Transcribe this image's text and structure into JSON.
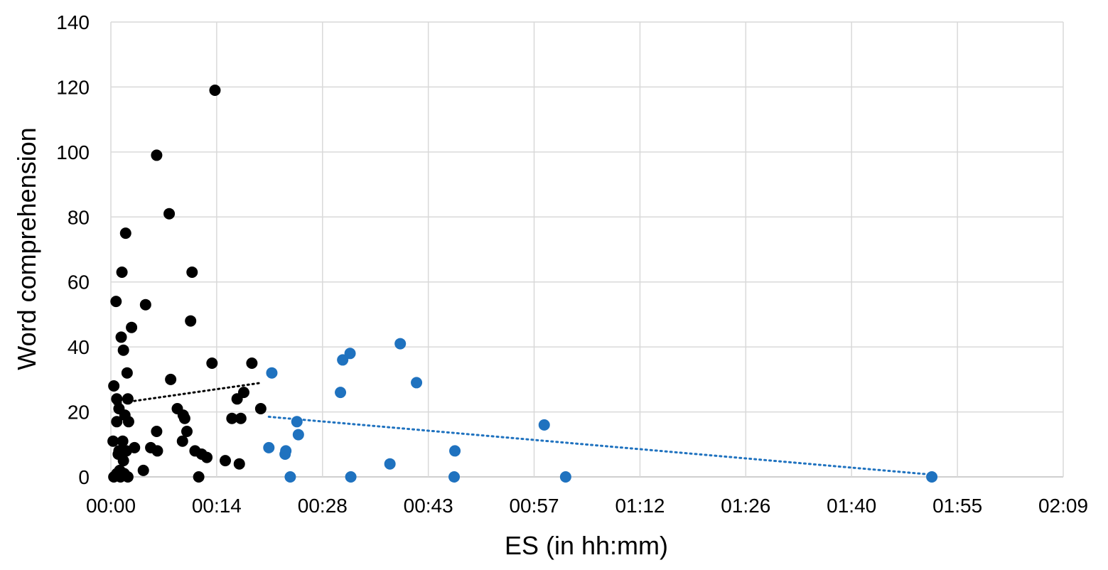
{
  "chart_data": {
    "type": "scatter",
    "title": "",
    "xlabel": "ES (in hh:mm)",
    "ylabel": "Word comprehension",
    "x_unit": "minutes",
    "xlim": [
      0,
      129
    ],
    "ylim": [
      0,
      140
    ],
    "x_ticks": [
      {
        "value": 0,
        "label": "00:00"
      },
      {
        "value": 14.33,
        "label": "00:14"
      },
      {
        "value": 28.67,
        "label": "00:28"
      },
      {
        "value": 43,
        "label": "00:43"
      },
      {
        "value": 57.33,
        "label": "00:57"
      },
      {
        "value": 71.67,
        "label": "01:12"
      },
      {
        "value": 86,
        "label": "01:26"
      },
      {
        "value": 100.33,
        "label": "01:40"
      },
      {
        "value": 114.67,
        "label": "01:55"
      },
      {
        "value": 129,
        "label": "02:09"
      }
    ],
    "y_ticks": [
      0,
      20,
      40,
      60,
      80,
      100,
      120,
      140
    ],
    "grid": true,
    "legend": "none",
    "series": [
      {
        "color": "#000000",
        "points": [
          [
            14.1,
            119
          ],
          [
            6.2,
            99
          ],
          [
            7.9,
            81
          ],
          [
            2.0,
            75
          ],
          [
            1.5,
            63
          ],
          [
            11.0,
            63
          ],
          [
            0.7,
            54
          ],
          [
            4.7,
            53
          ],
          [
            10.8,
            48
          ],
          [
            2.8,
            46
          ],
          [
            1.4,
            43
          ],
          [
            1.7,
            39
          ],
          [
            13.7,
            35
          ],
          [
            19.1,
            35
          ],
          [
            2.2,
            32
          ],
          [
            8.1,
            30
          ],
          [
            0.4,
            28
          ],
          [
            18.0,
            26
          ],
          [
            0.8,
            24
          ],
          [
            2.3,
            24
          ],
          [
            17.1,
            24
          ],
          [
            1.1,
            21
          ],
          [
            9.0,
            21
          ],
          [
            20.3,
            21
          ],
          [
            9.8,
            19
          ],
          [
            1.9,
            19
          ],
          [
            10.0,
            18
          ],
          [
            16.4,
            18
          ],
          [
            17.6,
            18
          ],
          [
            0.8,
            17
          ],
          [
            2.4,
            17
          ],
          [
            6.2,
            14
          ],
          [
            10.3,
            14
          ],
          [
            0.3,
            11
          ],
          [
            1.6,
            11
          ],
          [
            9.7,
            11
          ],
          [
            3.2,
            9
          ],
          [
            5.4,
            9
          ],
          [
            1.1,
            8
          ],
          [
            2.1,
            8
          ],
          [
            6.3,
            8
          ],
          [
            11.4,
            8
          ],
          [
            12.3,
            7
          ],
          [
            1.0,
            7
          ],
          [
            13.0,
            6
          ],
          [
            1.7,
            5
          ],
          [
            15.5,
            5
          ],
          [
            17.4,
            4
          ],
          [
            4.4,
            2
          ],
          [
            1.2,
            2
          ],
          [
            1.8,
            1
          ],
          [
            0.8,
            1
          ],
          [
            0.4,
            0
          ],
          [
            1.3,
            0
          ],
          [
            2.3,
            0
          ],
          [
            11.9,
            0
          ]
        ],
        "trendline": [
          [
            0.5,
            22.5
          ],
          [
            20.5,
            29.0
          ]
        ]
      },
      {
        "color": "#1F72BF",
        "points": [
          [
            21.8,
            32
          ],
          [
            31.4,
            36
          ],
          [
            32.4,
            38
          ],
          [
            39.2,
            41
          ],
          [
            41.4,
            29
          ],
          [
            31.1,
            26
          ],
          [
            25.2,
            17
          ],
          [
            58.7,
            16
          ],
          [
            25.4,
            13
          ],
          [
            21.4,
            9
          ],
          [
            23.7,
            8
          ],
          [
            46.6,
            8
          ],
          [
            23.6,
            7
          ],
          [
            37.8,
            4
          ],
          [
            24.3,
            0
          ],
          [
            32.5,
            0
          ],
          [
            46.5,
            0
          ],
          [
            61.6,
            0
          ],
          [
            111.2,
            0
          ]
        ],
        "trendline": [
          [
            21.4,
            18.5
          ],
          [
            111.2,
            0.7
          ]
        ]
      }
    ]
  }
}
